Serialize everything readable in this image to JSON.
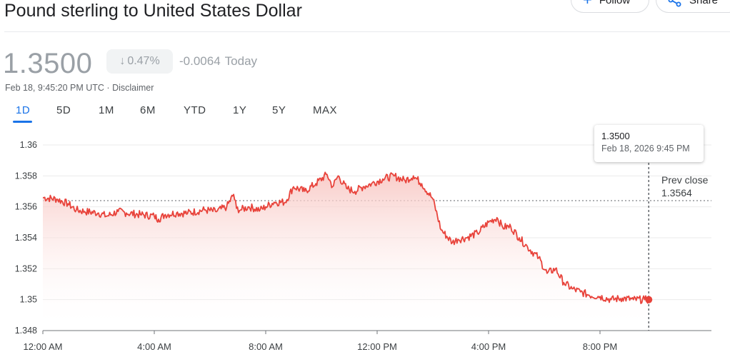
{
  "header": {
    "title": "Pound sterling to United States Dollar",
    "follow_label": "Follow",
    "follow_icon": "plus-icon",
    "share_label": "Share",
    "share_icon": "share-icon"
  },
  "quote": {
    "price": "1.3500",
    "change_percent": "0.47%",
    "change_direction_icon": "arrow-down-icon",
    "change_value": "-0.0064",
    "change_period": "Today",
    "timestamp": "Feb 18, 9:45:20 PM UTC",
    "separator": " · ",
    "disclaimer": "Disclaimer"
  },
  "tabs": [
    "1D",
    "5D",
    "1M",
    "6M",
    "YTD",
    "1Y",
    "5Y",
    "MAX"
  ],
  "active_tab": "1D",
  "tooltip": {
    "value": "1.3500",
    "date": "Feb 18, 2026 9:45 PM"
  },
  "prev_close": {
    "label": "Prev close",
    "value": "1.3564"
  },
  "colors": {
    "line": "#e8433b",
    "fill_top": "#f8c6c2",
    "accent": "#1a73e8",
    "muted": "#9aa0a6"
  },
  "chart_data": {
    "type": "area",
    "title": "",
    "xlabel": "",
    "ylabel": "",
    "ylim": [
      1.348,
      1.36
    ],
    "xlim_hours": [
      0,
      24
    ],
    "x_ticks": [
      {
        "hour": 0,
        "label": "12:00 AM"
      },
      {
        "hour": 4,
        "label": "4:00 AM"
      },
      {
        "hour": 8,
        "label": "8:00 AM"
      },
      {
        "hour": 12,
        "label": "12:00 PM"
      },
      {
        "hour": 16,
        "label": "4:00 PM"
      },
      {
        "hour": 20,
        "label": "8:00 PM"
      }
    ],
    "y_ticks": [
      1.348,
      1.35,
      1.352,
      1.354,
      1.356,
      1.358,
      1.36
    ],
    "y_tick_labels": [
      "1.348",
      "1.35",
      "1.352",
      "1.354",
      "1.356",
      "1.358",
      "1.36"
    ],
    "reference_line": 1.3564,
    "grid": true,
    "series": [
      {
        "x_hours": [
          0,
          0.5,
          0.9,
          1.2,
          1.5,
          2.0,
          2.3,
          2.7,
          3.0,
          3.5,
          4.0,
          4.15,
          4.4,
          4.8,
          5.2,
          5.8,
          6.2,
          6.6,
          6.85,
          6.95,
          7.1,
          7.4,
          7.8,
          8.0,
          8.3,
          8.7,
          9.0,
          9.4,
          9.8,
          10.2,
          10.4,
          10.6,
          10.9,
          11.2,
          11.5,
          11.8,
          12.2,
          12.6,
          13.0,
          13.3,
          13.6,
          14.0,
          14.3,
          14.7,
          14.9,
          15.2,
          15.6,
          16.0,
          16.3,
          16.5,
          16.8,
          17.1,
          17.4,
          17.8,
          18.1,
          18.4,
          18.7,
          19.0,
          19.3,
          19.6,
          20.0,
          20.4,
          20.8,
          21.2,
          21.6,
          21.75
        ],
        "values": [
          1.3566,
          1.3565,
          1.3562,
          1.3558,
          1.3557,
          1.3556,
          1.3554,
          1.3557,
          1.3556,
          1.3555,
          1.3554,
          1.3552,
          1.3555,
          1.3556,
          1.3556,
          1.3558,
          1.3557,
          1.356,
          1.3568,
          1.3559,
          1.3558,
          1.356,
          1.3558,
          1.356,
          1.3563,
          1.3563,
          1.3573,
          1.357,
          1.3575,
          1.3581,
          1.3573,
          1.358,
          1.3572,
          1.357,
          1.3573,
          1.3575,
          1.3578,
          1.358,
          1.3577,
          1.358,
          1.3575,
          1.3565,
          1.3545,
          1.3537,
          1.3539,
          1.354,
          1.3543,
          1.355,
          1.3553,
          1.3547,
          1.3547,
          1.354,
          1.3534,
          1.3527,
          1.3517,
          1.352,
          1.3511,
          1.3507,
          1.3505,
          1.3503,
          1.3502,
          1.35,
          1.3501,
          1.35,
          1.35,
          1.35
        ]
      }
    ]
  }
}
